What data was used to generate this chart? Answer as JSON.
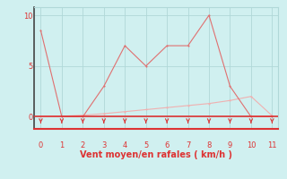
{
  "line1_x": [
    0,
    1,
    2,
    3,
    4,
    5,
    6,
    7,
    8,
    9,
    10,
    11
  ],
  "line1_y": [
    8.5,
    0.0,
    0.0,
    3.0,
    7.0,
    5.0,
    7.0,
    7.0,
    10.0,
    3.0,
    0.0,
    0.0
  ],
  "line2_x": [
    0,
    1,
    2,
    3,
    4,
    5,
    6,
    7,
    8,
    9,
    10,
    11
  ],
  "line2_y": [
    0.0,
    0.05,
    0.15,
    0.3,
    0.5,
    0.7,
    0.9,
    1.1,
    1.3,
    1.6,
    2.0,
    0.1
  ],
  "line1_color": "#e07070",
  "line2_color": "#f0b0b0",
  "background_color": "#d0f0f0",
  "grid_color": "#b0d8d8",
  "red_color": "#dd3333",
  "dark_color": "#444444",
  "xlabel": "Vent moyen/en rafales ( km/h )",
  "xlim": [
    -0.3,
    11.3
  ],
  "ylim": [
    -1.2,
    10.8
  ],
  "yticks": [
    0,
    5,
    10
  ],
  "xticks": [
    0,
    1,
    2,
    3,
    4,
    5,
    6,
    7,
    8,
    9,
    10,
    11
  ]
}
